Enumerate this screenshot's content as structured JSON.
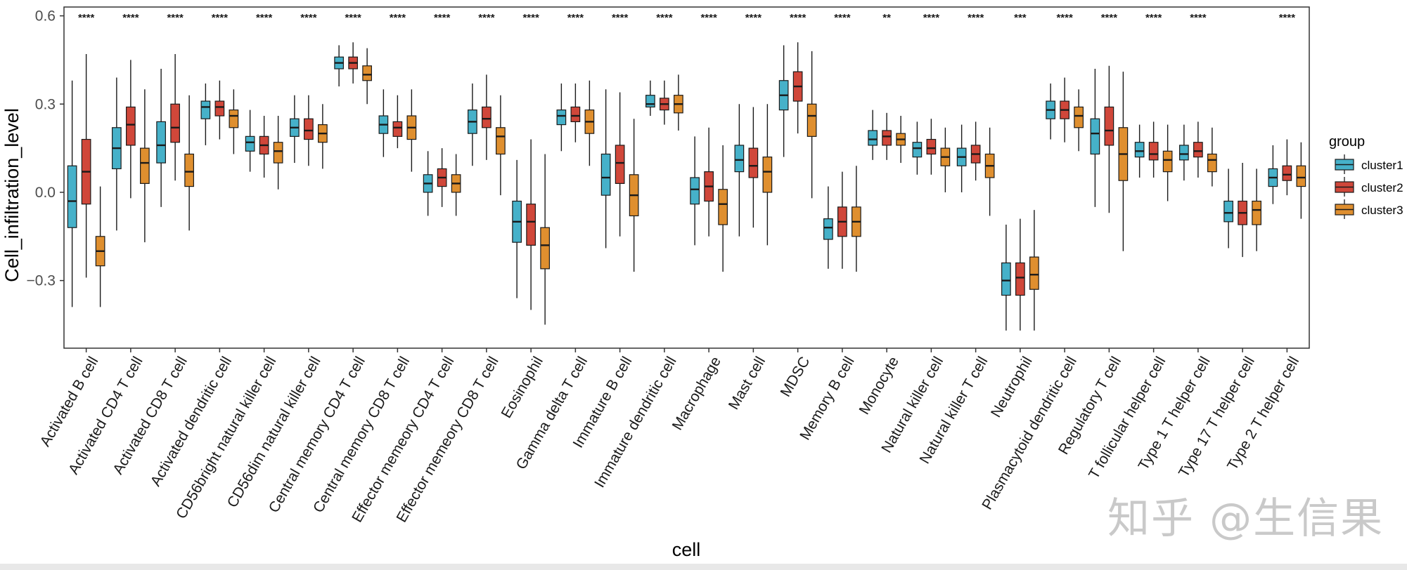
{
  "chart_data": {
    "type": "box",
    "xlabel": "cell",
    "ylabel": "Cell_infiltration_level",
    "ylim": [
      -0.53,
      0.63
    ],
    "yticks": [
      -0.3,
      0.0,
      0.3,
      0.6
    ],
    "ytick_labels": [
      "−0.3",
      "0.0",
      "0.3",
      "0.6"
    ],
    "grid": false,
    "legend": {
      "title": "group",
      "position": "right",
      "entries": [
        "cluster1",
        "cluster2",
        "cluster3"
      ]
    },
    "colors": {
      "cluster1": "#46b1c9",
      "cluster2": "#d0473a",
      "cluster3": "#df8f2f",
      "outline": "#1a1a1a"
    },
    "categories": [
      "Activated B cell",
      "Activated CD4 T cell",
      "Activated CD8 T cell",
      "Activated dendritic cell",
      "CD56bright natural killer cell",
      "CD56dim natural killer cell",
      "Central memory CD4 T cell",
      "Central memory CD8 T cell",
      "Effector memeory CD4 T cell",
      "Effector memeory CD8 T cell",
      "Eosinophil",
      "Gamma delta T cell",
      "Immature  B cell",
      "Immature dendritic cell",
      "Macrophage",
      "Mast cell",
      "MDSC",
      "Memory B cell",
      "Monocyte",
      "Natural killer cell",
      "Natural killer T cell",
      "Neutrophil",
      "Plasmacytoid dendritic cell",
      "Regulatory T cell",
      "T follicular helper cell",
      "Type 1 T helper cell",
      "Type 17 T helper cell",
      "Type 2 T helper cell"
    ],
    "significance": [
      "****",
      "****",
      "****",
      "****",
      "****",
      "****",
      "****",
      "****",
      "****",
      "****",
      "****",
      "****",
      "****",
      "****",
      "****",
      "****",
      "****",
      "****",
      "**",
      "****",
      "****",
      "***",
      "****",
      "****",
      "****",
      "****",
      "",
      "****"
    ],
    "series": [
      {
        "name": "cluster1",
        "boxes": [
          [
            -0.39,
            -0.12,
            -0.03,
            0.09,
            0.38
          ],
          [
            -0.13,
            0.08,
            0.15,
            0.22,
            0.39
          ],
          [
            -0.05,
            0.1,
            0.16,
            0.24,
            0.42
          ],
          [
            0.16,
            0.25,
            0.29,
            0.31,
            0.37
          ],
          [
            0.07,
            0.14,
            0.17,
            0.19,
            0.28
          ],
          [
            0.1,
            0.19,
            0.22,
            0.25,
            0.33
          ],
          [
            0.36,
            0.42,
            0.44,
            0.46,
            0.5
          ],
          [
            0.12,
            0.2,
            0.23,
            0.26,
            0.35
          ],
          [
            -0.08,
            0.0,
            0.03,
            0.06,
            0.14
          ],
          [
            0.09,
            0.2,
            0.24,
            0.28,
            0.37
          ],
          [
            -0.36,
            -0.17,
            -0.1,
            -0.03,
            0.11
          ],
          [
            0.14,
            0.23,
            0.26,
            0.28,
            0.37
          ],
          [
            -0.19,
            -0.01,
            0.05,
            0.13,
            0.35
          ],
          [
            0.26,
            0.29,
            0.3,
            0.33,
            0.38
          ],
          [
            -0.18,
            -0.04,
            0.01,
            0.05,
            0.19
          ],
          [
            -0.15,
            0.07,
            0.11,
            0.16,
            0.3
          ],
          [
            0.12,
            0.28,
            0.33,
            0.38,
            0.5
          ],
          [
            -0.26,
            -0.16,
            -0.12,
            -0.09,
            0.02
          ],
          [
            0.11,
            0.16,
            0.18,
            0.21,
            0.28
          ],
          [
            0.06,
            0.12,
            0.15,
            0.17,
            0.24
          ],
          [
            0.0,
            0.09,
            0.12,
            0.15,
            0.23
          ],
          [
            -0.47,
            -0.35,
            -0.3,
            -0.24,
            -0.11
          ],
          [
            0.18,
            0.25,
            0.28,
            0.31,
            0.37
          ],
          [
            -0.05,
            0.13,
            0.2,
            0.25,
            0.42
          ],
          [
            0.05,
            0.12,
            0.14,
            0.17,
            0.23
          ],
          [
            0.04,
            0.11,
            0.13,
            0.16,
            0.23
          ],
          [
            -0.19,
            -0.1,
            -0.07,
            -0.03,
            0.08
          ],
          [
            -0.04,
            0.02,
            0.05,
            0.08,
            0.16
          ]
        ]
      },
      {
        "name": "cluster2",
        "boxes": [
          [
            -0.29,
            -0.04,
            0.07,
            0.18,
            0.47
          ],
          [
            -0.02,
            0.16,
            0.23,
            0.29,
            0.45
          ],
          [
            0.04,
            0.17,
            0.22,
            0.3,
            0.47
          ],
          [
            0.18,
            0.26,
            0.29,
            0.31,
            0.38
          ],
          [
            0.05,
            0.13,
            0.16,
            0.19,
            0.26
          ],
          [
            0.09,
            0.18,
            0.21,
            0.25,
            0.33
          ],
          [
            0.37,
            0.42,
            0.44,
            0.46,
            0.51
          ],
          [
            0.15,
            0.19,
            0.22,
            0.24,
            0.33
          ],
          [
            -0.05,
            0.02,
            0.05,
            0.08,
            0.15
          ],
          [
            0.11,
            0.22,
            0.25,
            0.29,
            0.4
          ],
          [
            -0.4,
            -0.18,
            -0.1,
            -0.04,
            0.18
          ],
          [
            0.17,
            0.24,
            0.26,
            0.29,
            0.37
          ],
          [
            -0.15,
            0.03,
            0.1,
            0.16,
            0.34
          ],
          [
            0.23,
            0.28,
            0.3,
            0.32,
            0.38
          ],
          [
            -0.15,
            -0.03,
            0.02,
            0.07,
            0.22
          ],
          [
            -0.12,
            0.05,
            0.09,
            0.15,
            0.29
          ],
          [
            0.2,
            0.31,
            0.36,
            0.41,
            0.51
          ],
          [
            -0.26,
            -0.15,
            -0.1,
            -0.05,
            0.07
          ],
          [
            0.11,
            0.16,
            0.19,
            0.21,
            0.27
          ],
          [
            0.06,
            0.13,
            0.15,
            0.18,
            0.25
          ],
          [
            0.04,
            0.1,
            0.13,
            0.16,
            0.24
          ],
          [
            -0.47,
            -0.35,
            -0.29,
            -0.24,
            -0.09
          ],
          [
            0.17,
            0.25,
            0.28,
            0.31,
            0.39
          ],
          [
            -0.07,
            0.16,
            0.21,
            0.29,
            0.43
          ],
          [
            0.05,
            0.11,
            0.13,
            0.17,
            0.24
          ],
          [
            0.05,
            0.12,
            0.14,
            0.17,
            0.24
          ],
          [
            -0.22,
            -0.11,
            -0.07,
            -0.03,
            0.1
          ],
          [
            -0.01,
            0.04,
            0.06,
            0.09,
            0.18
          ]
        ]
      },
      {
        "name": "cluster3",
        "boxes": [
          [
            -0.39,
            -0.25,
            -0.2,
            -0.15,
            0.02
          ],
          [
            -0.17,
            0.03,
            0.1,
            0.15,
            0.35
          ],
          [
            -0.13,
            0.02,
            0.07,
            0.13,
            0.33
          ],
          [
            0.13,
            0.22,
            0.26,
            0.28,
            0.35
          ],
          [
            0.01,
            0.1,
            0.14,
            0.17,
            0.26
          ],
          [
            0.08,
            0.17,
            0.2,
            0.23,
            0.3
          ],
          [
            0.3,
            0.38,
            0.4,
            0.43,
            0.49
          ],
          [
            0.07,
            0.18,
            0.22,
            0.26,
            0.35
          ],
          [
            -0.08,
            0.0,
            0.03,
            0.06,
            0.13
          ],
          [
            -0.01,
            0.13,
            0.19,
            0.22,
            0.33
          ],
          [
            -0.45,
            -0.26,
            -0.18,
            -0.12,
            0.13
          ],
          [
            0.09,
            0.2,
            0.24,
            0.28,
            0.38
          ],
          [
            -0.27,
            -0.08,
            -0.01,
            0.06,
            0.25
          ],
          [
            0.21,
            0.27,
            0.3,
            0.33,
            0.4
          ],
          [
            -0.27,
            -0.11,
            -0.04,
            0.01,
            0.16
          ],
          [
            -0.18,
            0.0,
            0.07,
            0.12,
            0.3
          ],
          [
            -0.02,
            0.19,
            0.26,
            0.3,
            0.48
          ],
          [
            -0.27,
            -0.15,
            -0.1,
            -0.05,
            0.09
          ],
          [
            0.1,
            0.16,
            0.18,
            0.2,
            0.26
          ],
          [
            0.0,
            0.09,
            0.12,
            0.15,
            0.22
          ],
          [
            -0.08,
            0.05,
            0.09,
            0.13,
            0.22
          ],
          [
            -0.47,
            -0.33,
            -0.28,
            -0.22,
            -0.06
          ],
          [
            0.14,
            0.22,
            0.26,
            0.29,
            0.35
          ],
          [
            -0.2,
            0.04,
            0.13,
            0.22,
            0.41
          ],
          [
            -0.03,
            0.07,
            0.11,
            0.14,
            0.23
          ],
          [
            0.02,
            0.07,
            0.11,
            0.13,
            0.22
          ],
          [
            -0.2,
            -0.11,
            -0.06,
            -0.03,
            0.08
          ],
          [
            -0.09,
            0.02,
            0.05,
            0.09,
            0.17
          ]
        ]
      }
    ]
  },
  "watermark": "知乎 @生信果"
}
